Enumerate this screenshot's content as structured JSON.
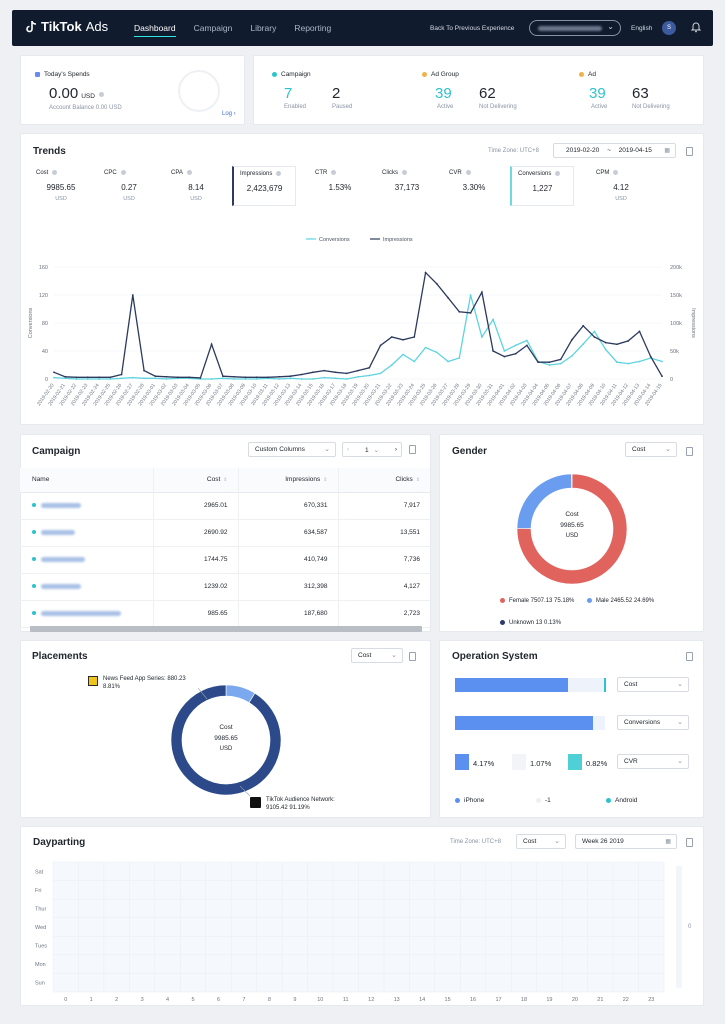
{
  "colors": {
    "navy": "#2c3a6e",
    "cyan": "#2ec2cc",
    "coral": "#e0635d",
    "blue": "#6a9cf0",
    "nav_bg": "#101b2e"
  },
  "header": {
    "logo": "TikTok",
    "logo_suffix": "Ads",
    "nav": [
      "Dashboard",
      "Campaign",
      "Library",
      "Reporting"
    ],
    "back_label": "Back To Previous Experience",
    "language": "English",
    "avatar_initial": "S"
  },
  "spends": {
    "label": "Today's Spends",
    "value": "0.00",
    "unit": "USD",
    "balance": "Account Balance 0.00 USD",
    "log_label": "Log"
  },
  "status": {
    "campaign": {
      "label": "Campaign",
      "a_val": "7",
      "a_lbl": "Enabled",
      "b_val": "2",
      "b_lbl": "Paused"
    },
    "adgroup": {
      "label": "Ad Group",
      "a_val": "39",
      "a_lbl": "Active",
      "b_val": "62",
      "b_lbl": "Not Delivering"
    },
    "ad": {
      "label": "Ad",
      "a_val": "39",
      "a_lbl": "Active",
      "b_val": "63",
      "b_lbl": "Not Delivering"
    }
  },
  "trends": {
    "title": "Trends",
    "timezone": "Time Zone: UTC+8",
    "date_from": "2019-02-20",
    "date_sep": "~",
    "date_to": "2019-04-15",
    "metrics": [
      {
        "name": "Cost",
        "value": "9985.65",
        "unit": "USD"
      },
      {
        "name": "CPC",
        "value": "0.27",
        "unit": "USD"
      },
      {
        "name": "CPA",
        "value": "8.14",
        "unit": "USD"
      },
      {
        "name": "Impressions",
        "value": "2,423,679",
        "unit": ""
      },
      {
        "name": "CTR",
        "value": "1.53%",
        "unit": ""
      },
      {
        "name": "Clicks",
        "value": "37,173",
        "unit": ""
      },
      {
        "name": "CVR",
        "value": "3.30%",
        "unit": ""
      },
      {
        "name": "Conversions",
        "value": "1,227",
        "unit": ""
      },
      {
        "name": "CPM",
        "value": "4.12",
        "unit": "USD"
      }
    ]
  },
  "chart_data": {
    "type": "line",
    "ylabel": "Conversions",
    "y2label": "Impressions",
    "ylim": [
      0,
      160
    ],
    "y2lim": [
      0,
      200000
    ],
    "yticks": [
      "0",
      "40",
      "80",
      "120",
      "160"
    ],
    "y2ticks": [
      "0",
      "50k",
      "100k",
      "150k",
      "200k"
    ],
    "x": [
      "2019-02-20",
      "2019-02-21",
      "2019-02-22",
      "2019-02-23",
      "2019-02-24",
      "2019-02-25",
      "2019-02-26",
      "2019-02-27",
      "2019-02-28",
      "2019-03-01",
      "2019-03-02",
      "2019-03-03",
      "2019-03-04",
      "2019-03-05",
      "2019-03-06",
      "2019-03-07",
      "2019-03-08",
      "2019-03-09",
      "2019-03-10",
      "2019-03-11",
      "2019-03-12",
      "2019-03-13",
      "2019-03-14",
      "2019-03-15",
      "2019-03-16",
      "2019-03-17",
      "2019-03-18",
      "2019-03-19",
      "2019-03-20",
      "2019-03-21",
      "2019-03-22",
      "2019-03-23",
      "2019-03-24",
      "2019-03-25",
      "2019-03-26",
      "2019-03-27",
      "2019-03-28",
      "2019-03-29",
      "2019-03-30",
      "2019-03-31",
      "2019-04-01",
      "2019-04-02",
      "2019-04-03",
      "2019-04-04",
      "2019-04-05",
      "2019-04-06",
      "2019-04-07",
      "2019-04-08",
      "2019-04-09",
      "2019-04-10",
      "2019-04-11",
      "2019-04-12",
      "2019-04-13",
      "2019-04-14",
      "2019-04-15"
    ],
    "series": [
      {
        "name": "Conversions",
        "color": "#5fd4de",
        "values": [
          2,
          1,
          0,
          0,
          0,
          0,
          1,
          2,
          1,
          1,
          0,
          1,
          1,
          0,
          0,
          1,
          0,
          0,
          0,
          1,
          0,
          1,
          0,
          0,
          2,
          1,
          0,
          3,
          5,
          8,
          20,
          35,
          25,
          45,
          38,
          25,
          30,
          120,
          60,
          85,
          40,
          48,
          55,
          25,
          20,
          22,
          33,
          50,
          68,
          42,
          24,
          22,
          25,
          30,
          25
        ]
      },
      {
        "name": "Impressions",
        "color": "#2c3a5e",
        "values": [
          12000,
          4000,
          3000,
          3000,
          3000,
          3000,
          8000,
          150000,
          15000,
          5000,
          4000,
          3000,
          3000,
          2000,
          62000,
          5000,
          4000,
          3000,
          3000,
          3000,
          4000,
          5000,
          8000,
          12000,
          15000,
          12000,
          10000,
          15000,
          20000,
          60000,
          75000,
          70000,
          75000,
          190000,
          170000,
          145000,
          120000,
          118000,
          155000,
          50000,
          40000,
          45000,
          60000,
          30000,
          30000,
          35000,
          70000,
          95000,
          75000,
          65000,
          62000,
          68000,
          85000,
          40000,
          5000
        ]
      }
    ]
  },
  "campaign": {
    "title": "Campaign",
    "custom_columns": "Custom Columns",
    "page": "1",
    "columns": [
      "Name",
      "Cost",
      "Impressions",
      "Clicks"
    ],
    "rows": [
      {
        "cost": "2965.01",
        "impressions": "670,331",
        "clicks": "7,917"
      },
      {
        "cost": "2690.92",
        "impressions": "634,587",
        "clicks": "13,551"
      },
      {
        "cost": "1744.75",
        "impressions": "410,749",
        "clicks": "7,736"
      },
      {
        "cost": "1239.02",
        "impressions": "312,398",
        "clicks": "4,127"
      },
      {
        "cost": "985.65",
        "impressions": "187,680",
        "clicks": "2,723"
      }
    ]
  },
  "gender": {
    "title": "Gender",
    "select": "Cost",
    "center_label": "Cost",
    "center_value": "9985.65",
    "center_unit": "USD",
    "slices": [
      {
        "label": "Female 7507.13 75.18%",
        "value": 75.18,
        "color": "#e0635d"
      },
      {
        "label": "Male 2465.52 24.69%",
        "value": 24.69,
        "color": "#6a9cf0"
      },
      {
        "label": "Unknown 13 0.13%",
        "value": 0.13,
        "color": "#2c3a6e"
      }
    ]
  },
  "placements": {
    "title": "Placements",
    "select": "Cost",
    "center_label": "Cost",
    "center_value": "9985.65",
    "center_unit": "USD",
    "news_label": "News Feed App Series: 880.23",
    "news_pct": "8.81%",
    "tiktok_label": "TikTok Audience Network:",
    "tiktok_value": "9105.42 91.19%",
    "slices": [
      {
        "value": 8.81,
        "color": "#7ba8ef"
      },
      {
        "value": 91.19,
        "color": "#2c4a8a"
      }
    ]
  },
  "os": {
    "title": "Operation System",
    "select1": "Cost",
    "select2": "Conversions",
    "select3": "CVR",
    "bar1_fill": 0.75,
    "bar2_fill": 0.92,
    "cvr_ios": "4.17%",
    "cvr_other": "1.07%",
    "cvr_android": "0.82%",
    "legend": [
      "iPhone",
      "-1",
      "Android"
    ]
  },
  "dayparting": {
    "title": "Dayparting",
    "timezone": "Time Zone: UTC+8",
    "select": "Cost",
    "week": "Week 26 2019",
    "days": [
      "Sat",
      "Fri",
      "Thur",
      "Wed",
      "Tues",
      "Mon",
      "Sun"
    ],
    "hours": [
      "0",
      "1",
      "2",
      "3",
      "4",
      "5",
      "6",
      "7",
      "8",
      "9",
      "10",
      "11",
      "12",
      "13",
      "14",
      "15",
      "16",
      "17",
      "18",
      "19",
      "20",
      "21",
      "22",
      "23"
    ],
    "scale_value": "0"
  }
}
